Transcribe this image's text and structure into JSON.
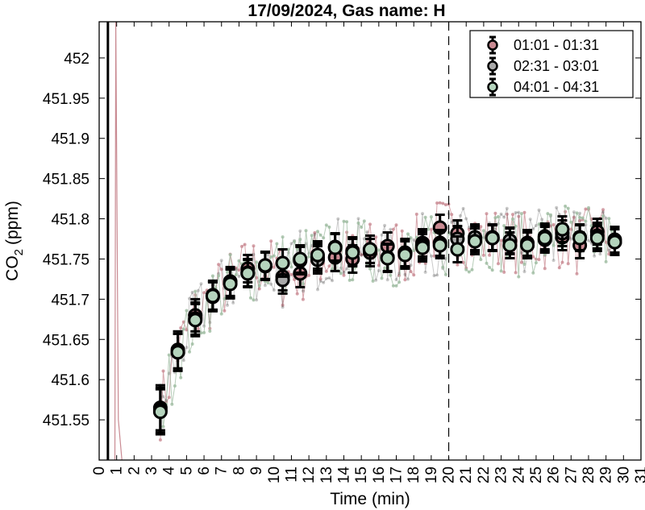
{
  "chart_data": {
    "type": "scatter",
    "title": "17/09/2024, Gas name: H",
    "xlabel": "Time (min)",
    "ylabel_main": "CO",
    "ylabel_sub": "2",
    "ylabel_unit": "(ppm)",
    "xlim": [
      0,
      31
    ],
    "ylim": [
      451.5,
      452.045
    ],
    "xticks": [
      0,
      1,
      2,
      3,
      4,
      5,
      6,
      7,
      8,
      9,
      10,
      11,
      12,
      13,
      14,
      15,
      16,
      17,
      18,
      19,
      20,
      21,
      22,
      23,
      24,
      25,
      26,
      27,
      28,
      29,
      30,
      31
    ],
    "yticks": [
      451.55,
      451.6,
      451.65,
      451.7,
      451.75,
      451.8,
      451.85,
      451.9,
      451.95,
      452
    ],
    "ytick_labels": [
      "451.55",
      "451.6",
      "451.65",
      "451.7",
      "451.75",
      "451.8",
      "451.85",
      "451.9",
      "451.95",
      "452"
    ],
    "vertical_lines": [
      {
        "x": 0.5,
        "style": "solid"
      },
      {
        "x": 20,
        "style": "dashed"
      }
    ],
    "legend_position": "top-right",
    "grid": false,
    "series": [
      {
        "name": "01:01 - 01:31",
        "color": "#c98a92",
        "marker_fill": "#c98a92",
        "x": [
          3.5,
          4.5,
          5.5,
          6.5,
          7.5,
          8.5,
          9.5,
          10.5,
          11.5,
          12.5,
          13.5,
          14.5,
          15.5,
          16.5,
          17.5,
          18.5,
          19.5,
          20.5,
          21.5,
          22.5,
          23.5,
          24.5,
          25.5,
          26.5,
          27.5,
          28.5,
          29.5
        ],
        "y": [
          451.565,
          451.637,
          451.68,
          451.703,
          451.722,
          451.738,
          451.742,
          451.728,
          451.732,
          451.752,
          451.752,
          451.75,
          451.758,
          451.766,
          451.758,
          451.77,
          451.789,
          451.782,
          451.775,
          451.776,
          451.772,
          451.77,
          451.774,
          451.777,
          451.767,
          451.784,
          451.774
        ],
        "err": [
          0.028,
          0.023,
          0.02,
          0.018,
          0.018,
          0.017,
          0.017,
          0.017,
          0.017,
          0.017,
          0.017,
          0.017,
          0.017,
          0.017,
          0.017,
          0.017,
          0.016,
          0.016,
          0.016,
          0.016,
          0.016,
          0.016,
          0.016,
          0.016,
          0.016,
          0.016,
          0.016
        ]
      },
      {
        "name": "02:31 - 03:01",
        "color": "#2a2a2a",
        "marker_fill": "#a9a9a9",
        "x": [
          3.5,
          4.5,
          5.5,
          6.5,
          7.5,
          8.5,
          9.5,
          10.5,
          11.5,
          12.5,
          13.5,
          14.5,
          15.5,
          16.5,
          17.5,
          18.5,
          19.5,
          20.5,
          21.5,
          22.5,
          23.5,
          24.5,
          25.5,
          26.5,
          27.5,
          28.5,
          29.5
        ],
        "y": [
          451.562,
          451.634,
          451.676,
          451.705,
          451.72,
          451.733,
          451.741,
          451.724,
          451.748,
          451.749,
          451.765,
          451.76,
          451.762,
          451.752,
          451.757,
          451.767,
          451.77,
          451.775,
          451.777,
          451.777,
          451.773,
          451.767,
          451.778,
          451.782,
          451.777,
          451.779,
          451.771
        ],
        "err": [
          0.028,
          0.023,
          0.02,
          0.018,
          0.018,
          0.017,
          0.017,
          0.017,
          0.017,
          0.017,
          0.017,
          0.017,
          0.017,
          0.017,
          0.017,
          0.017,
          0.016,
          0.016,
          0.016,
          0.016,
          0.016,
          0.016,
          0.016,
          0.016,
          0.016,
          0.016,
          0.016
        ]
      },
      {
        "name": "04:01 - 04:31",
        "color": "#9ebba0",
        "marker_fill": "#b5d4bd",
        "x": [
          3.5,
          4.5,
          5.5,
          6.5,
          7.5,
          8.5,
          9.5,
          10.5,
          11.5,
          12.5,
          13.5,
          14.5,
          15.5,
          16.5,
          17.5,
          18.5,
          19.5,
          20.5,
          21.5,
          22.5,
          23.5,
          24.5,
          25.5,
          26.5,
          27.5,
          28.5,
          29.5
        ],
        "y": [
          451.56,
          451.634,
          451.674,
          451.704,
          451.719,
          451.732,
          451.742,
          451.745,
          451.75,
          451.755,
          451.764,
          451.758,
          451.762,
          451.751,
          451.755,
          451.764,
          451.767,
          451.762,
          451.772,
          451.776,
          451.767,
          451.767,
          451.776,
          451.787,
          451.776,
          451.776,
          451.771
        ],
        "err": [
          0.028,
          0.023,
          0.02,
          0.018,
          0.018,
          0.017,
          0.017,
          0.017,
          0.017,
          0.017,
          0.017,
          0.017,
          0.017,
          0.017,
          0.017,
          0.017,
          0.016,
          0.016,
          0.016,
          0.016,
          0.016,
          0.016,
          0.016,
          0.016,
          0.016,
          0.016,
          0.016
        ]
      }
    ]
  }
}
